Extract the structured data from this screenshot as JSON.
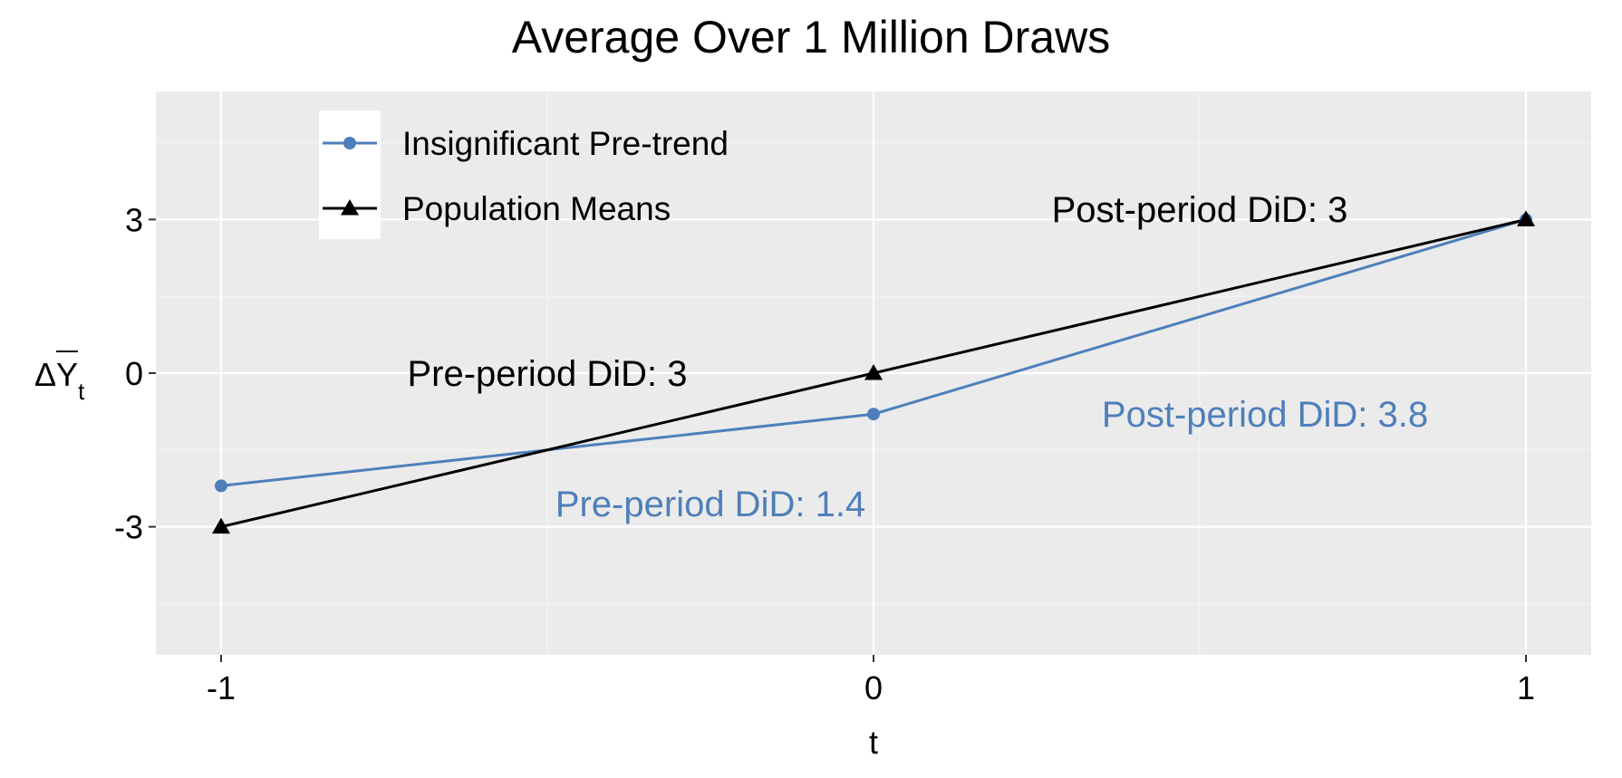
{
  "chart_data": {
    "type": "line",
    "title": "Average Over 1 Million Draws",
    "xlabel": "t",
    "ylabel": {
      "base": "ΔY",
      "subscript": "t"
    },
    "xlim": [
      -1.1,
      1.1
    ],
    "ylim": [
      -5.5,
      5.5
    ],
    "x_ticks": [
      -1,
      0,
      1
    ],
    "x_tick_labels": [
      "-1",
      "0",
      "1"
    ],
    "y_ticks": [
      -3,
      0,
      3
    ],
    "y_tick_labels": [
      "-3",
      "0",
      "3"
    ],
    "grid": true,
    "legend_position": "top-left",
    "series": [
      {
        "name": "Insignificant Pre-trend",
        "x": [
          -1,
          0,
          1
        ],
        "values": [
          -2.2,
          -0.8,
          3.0
        ],
        "color": "#4E7FBA",
        "marker": "circle"
      },
      {
        "name": "Population Means",
        "x": [
          -1,
          0,
          1
        ],
        "values": [
          -3,
          0,
          3
        ],
        "color": "#000000",
        "marker": "triangle"
      }
    ],
    "annotations": [
      {
        "text": "Post-period DiD: 3",
        "x": 0.5,
        "y": 3.2,
        "color": "#000000"
      },
      {
        "text": "Pre-period DiD: 3",
        "x": -0.5,
        "y": 0.0,
        "color": "#000000"
      },
      {
        "text": "Post-period DiD: 3.8",
        "x": 0.6,
        "y": -0.8,
        "color": "#4E7FBA"
      },
      {
        "text": "Pre-period DiD: 1.4",
        "x": -0.25,
        "y": -2.55,
        "color": "#4E7FBA"
      }
    ]
  }
}
